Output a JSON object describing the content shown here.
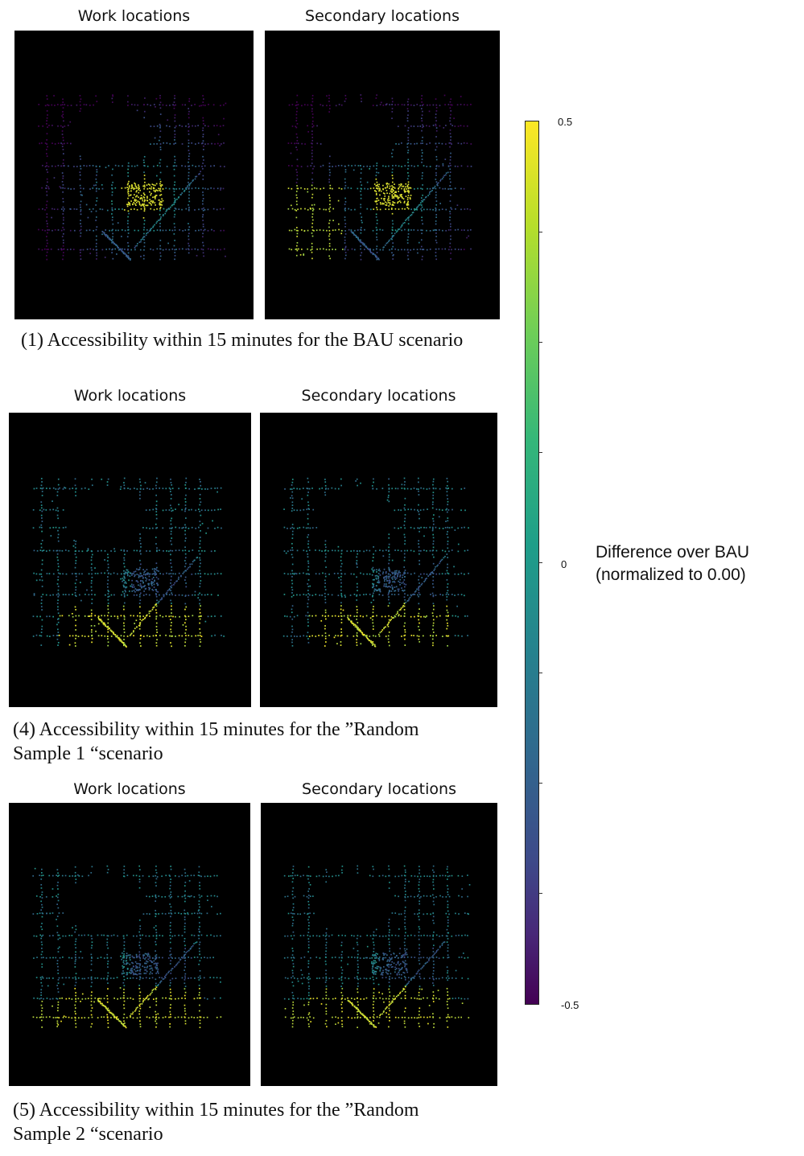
{
  "panels": [
    {
      "work_title": "Work locations",
      "secondary_title": "Secondary locations",
      "caption_lines": [
        "(1) Accessibility within 15 minutes for the BAU scenario"
      ]
    },
    {
      "work_title": "Work locations",
      "secondary_title": "Secondary locations",
      "caption_lines": [
        "(4) Accessibility within 15 minutes for the ”Random",
        "Sample 1 “scenario"
      ]
    },
    {
      "work_title": "Work locations",
      "secondary_title": "Secondary locations",
      "caption_lines": [
        "(5) Accessibility within 15 minutes for the ”Random",
        "Sample 2 “scenario"
      ]
    }
  ],
  "colorbar": {
    "max_label": "0.5",
    "mid_label": "0",
    "min_label": "-0.5",
    "title_lines": [
      "Difference over BAU",
      "(normalized to 0.00)"
    ],
    "colormap": "viridis",
    "range": [
      -0.5,
      0.5
    ]
  }
}
